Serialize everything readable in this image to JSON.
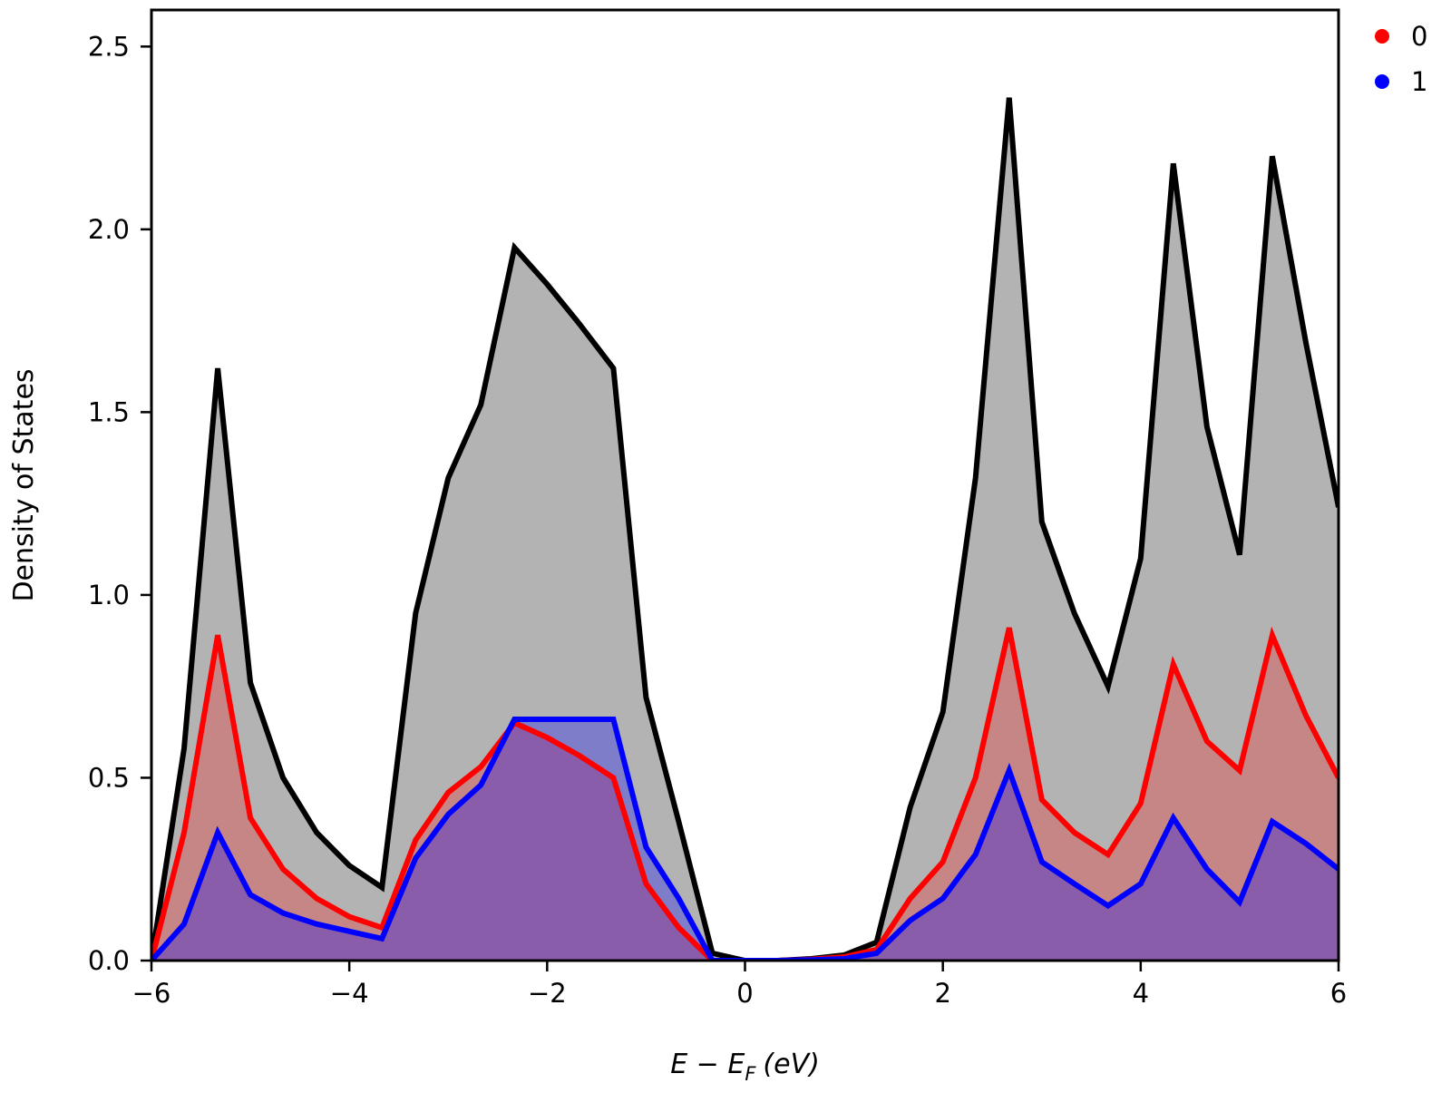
{
  "chart_data": {
    "type": "area",
    "title": "",
    "xlabel": "E − E",
    "xlabel_sub": "F",
    "xlabel_unit": "(eV)",
    "ylabel": "Density of States",
    "xlim": [
      -6,
      6
    ],
    "ylim": [
      0,
      2.6
    ],
    "x_ticks": [
      -6,
      -4,
      -2,
      0,
      2,
      4,
      6
    ],
    "x_tick_labels": [
      "−6",
      "−4",
      "−2",
      "0",
      "2",
      "4",
      "6"
    ],
    "y_ticks": [
      0,
      0.5,
      1,
      1.5,
      2,
      2.5
    ],
    "y_tick_labels": [
      "0.0",
      "0.5",
      "1.0",
      "1.5",
      "2.0",
      "2.5"
    ],
    "grid": false,
    "legend_position": "outside-top-right",
    "x": [
      -6.0,
      -5.67,
      -5.33,
      -5.0,
      -4.67,
      -4.33,
      -4.0,
      -3.67,
      -3.33,
      -3.0,
      -2.67,
      -2.33,
      -2.0,
      -1.67,
      -1.33,
      -1.0,
      -0.67,
      -0.33,
      0.0,
      0.33,
      0.67,
      1.0,
      1.33,
      1.67,
      2.0,
      2.33,
      2.67,
      3.0,
      3.33,
      3.67,
      4.0,
      4.33,
      4.67,
      5.0,
      5.33,
      5.67,
      6.0
    ],
    "series": [
      {
        "key": "total",
        "color": "#000000",
        "fill": "#b3b3b3",
        "values": [
          0.0,
          0.58,
          1.62,
          0.76,
          0.5,
          0.35,
          0.26,
          0.2,
          0.95,
          1.32,
          1.52,
          1.95,
          1.85,
          1.74,
          1.62,
          0.72,
          0.38,
          0.02,
          0.0,
          0.0,
          0.005,
          0.015,
          0.05,
          0.42,
          0.68,
          1.32,
          2.36,
          1.2,
          0.95,
          0.75,
          1.1,
          2.18,
          1.46,
          1.11,
          2.2,
          1.69,
          1.24
        ]
      },
      {
        "key": "0",
        "name": "0",
        "color": "#ff0000",
        "fill": "rgba(255,0,0,0.25)",
        "values": [
          0.0,
          0.35,
          0.89,
          0.39,
          0.25,
          0.17,
          0.12,
          0.09,
          0.33,
          0.46,
          0.53,
          0.65,
          0.61,
          0.56,
          0.5,
          0.21,
          0.09,
          0.0,
          0.0,
          0.0,
          0.003,
          0.01,
          0.03,
          0.17,
          0.27,
          0.5,
          0.91,
          0.44,
          0.35,
          0.29,
          0.43,
          0.81,
          0.6,
          0.52,
          0.89,
          0.67,
          0.5
        ]
      },
      {
        "key": "1",
        "name": "1",
        "color": "#0000ff",
        "fill": "rgba(0,0,255,0.3)",
        "values": [
          0.0,
          0.1,
          0.35,
          0.18,
          0.13,
          0.1,
          0.08,
          0.06,
          0.28,
          0.4,
          0.48,
          0.66,
          0.66,
          0.66,
          0.66,
          0.31,
          0.17,
          0.0,
          0.0,
          0.0,
          0.002,
          0.005,
          0.02,
          0.11,
          0.17,
          0.29,
          0.52,
          0.27,
          0.21,
          0.15,
          0.21,
          0.39,
          0.25,
          0.16,
          0.38,
          0.32,
          0.25
        ]
      }
    ],
    "legend": [
      {
        "label": "0",
        "color": "#ff0000"
      },
      {
        "label": "1",
        "color": "#0000ff"
      }
    ]
  }
}
